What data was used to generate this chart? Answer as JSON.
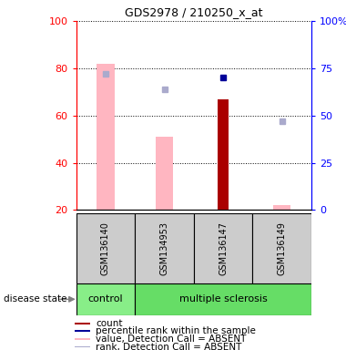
{
  "title": "GDS2978 / 210250_x_at",
  "samples": [
    "GSM136140",
    "GSM134953",
    "GSM136147",
    "GSM136149"
  ],
  "disease_state": [
    "control",
    "multiple sclerosis",
    "multiple sclerosis",
    "multiple sclerosis"
  ],
  "bar_values_absent": [
    82,
    51,
    null,
    22
  ],
  "bar_ranks_absent": [
    72,
    64,
    null,
    47
  ],
  "bar_values_present": [
    null,
    null,
    67,
    null
  ],
  "bar_ranks_present": [
    null,
    null,
    70,
    null
  ],
  "ylim_left": [
    20,
    100
  ],
  "ylim_right": [
    0,
    100
  ],
  "yticks_left": [
    20,
    40,
    60,
    80,
    100
  ],
  "yticks_right": [
    0,
    25,
    50,
    75,
    100
  ],
  "ytick_labels_left": [
    "20",
    "40",
    "60",
    "80",
    "100"
  ],
  "ytick_labels_right": [
    "0",
    "25",
    "50",
    "75",
    "100%"
  ],
  "color_bar_absent": "#FFB6C1",
  "color_rank_absent": "#AAAACC",
  "color_bar_present": "#AA0000",
  "color_rank_present": "#000099",
  "color_control_bg": "#88EE88",
  "color_ms_bg": "#66DD66",
  "color_sample_bg": "#CCCCCC",
  "absent_value_data": [
    82,
    51,
    null,
    22
  ],
  "absent_rank_data": [
    72,
    64,
    null,
    47
  ],
  "present_value_data": [
    null,
    null,
    67,
    null
  ],
  "present_rank_data": [
    null,
    null,
    70,
    null
  ]
}
